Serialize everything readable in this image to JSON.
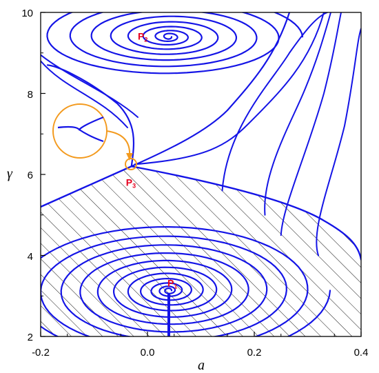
{
  "chart_data": {
    "type": "line",
    "title": "",
    "xlabel": "a",
    "ylabel": "γ",
    "xlim": [
      -0.2,
      0.4
    ],
    "ylim": [
      2,
      10
    ],
    "xticks": [
      -0.2,
      0.0,
      0.2,
      0.4
    ],
    "xtick_labels": [
      "-0.2",
      "0.0",
      "0.2",
      "0.4"
    ],
    "yticks": [
      2,
      4,
      6,
      8,
      10
    ],
    "ytick_labels": [
      "2",
      "4",
      "6",
      "8",
      "10"
    ],
    "grid": false,
    "hatched_region": "basin below the separatrix through P3",
    "points": [
      {
        "label": "P",
        "subscript": "1",
        "x": 0.04,
        "y": 3.1
      },
      {
        "label": "P",
        "subscript": "2",
        "x": 0.04,
        "y": 9.4
      },
      {
        "label": "P",
        "subscript": "3",
        "x": -0.03,
        "y": 6.2
      }
    ],
    "inset": "magnified view of P3",
    "colors": {
      "trajectory": "#1414e6",
      "points": "#e6001e",
      "inset": "#f39a1e",
      "hatch": "#000000"
    }
  }
}
